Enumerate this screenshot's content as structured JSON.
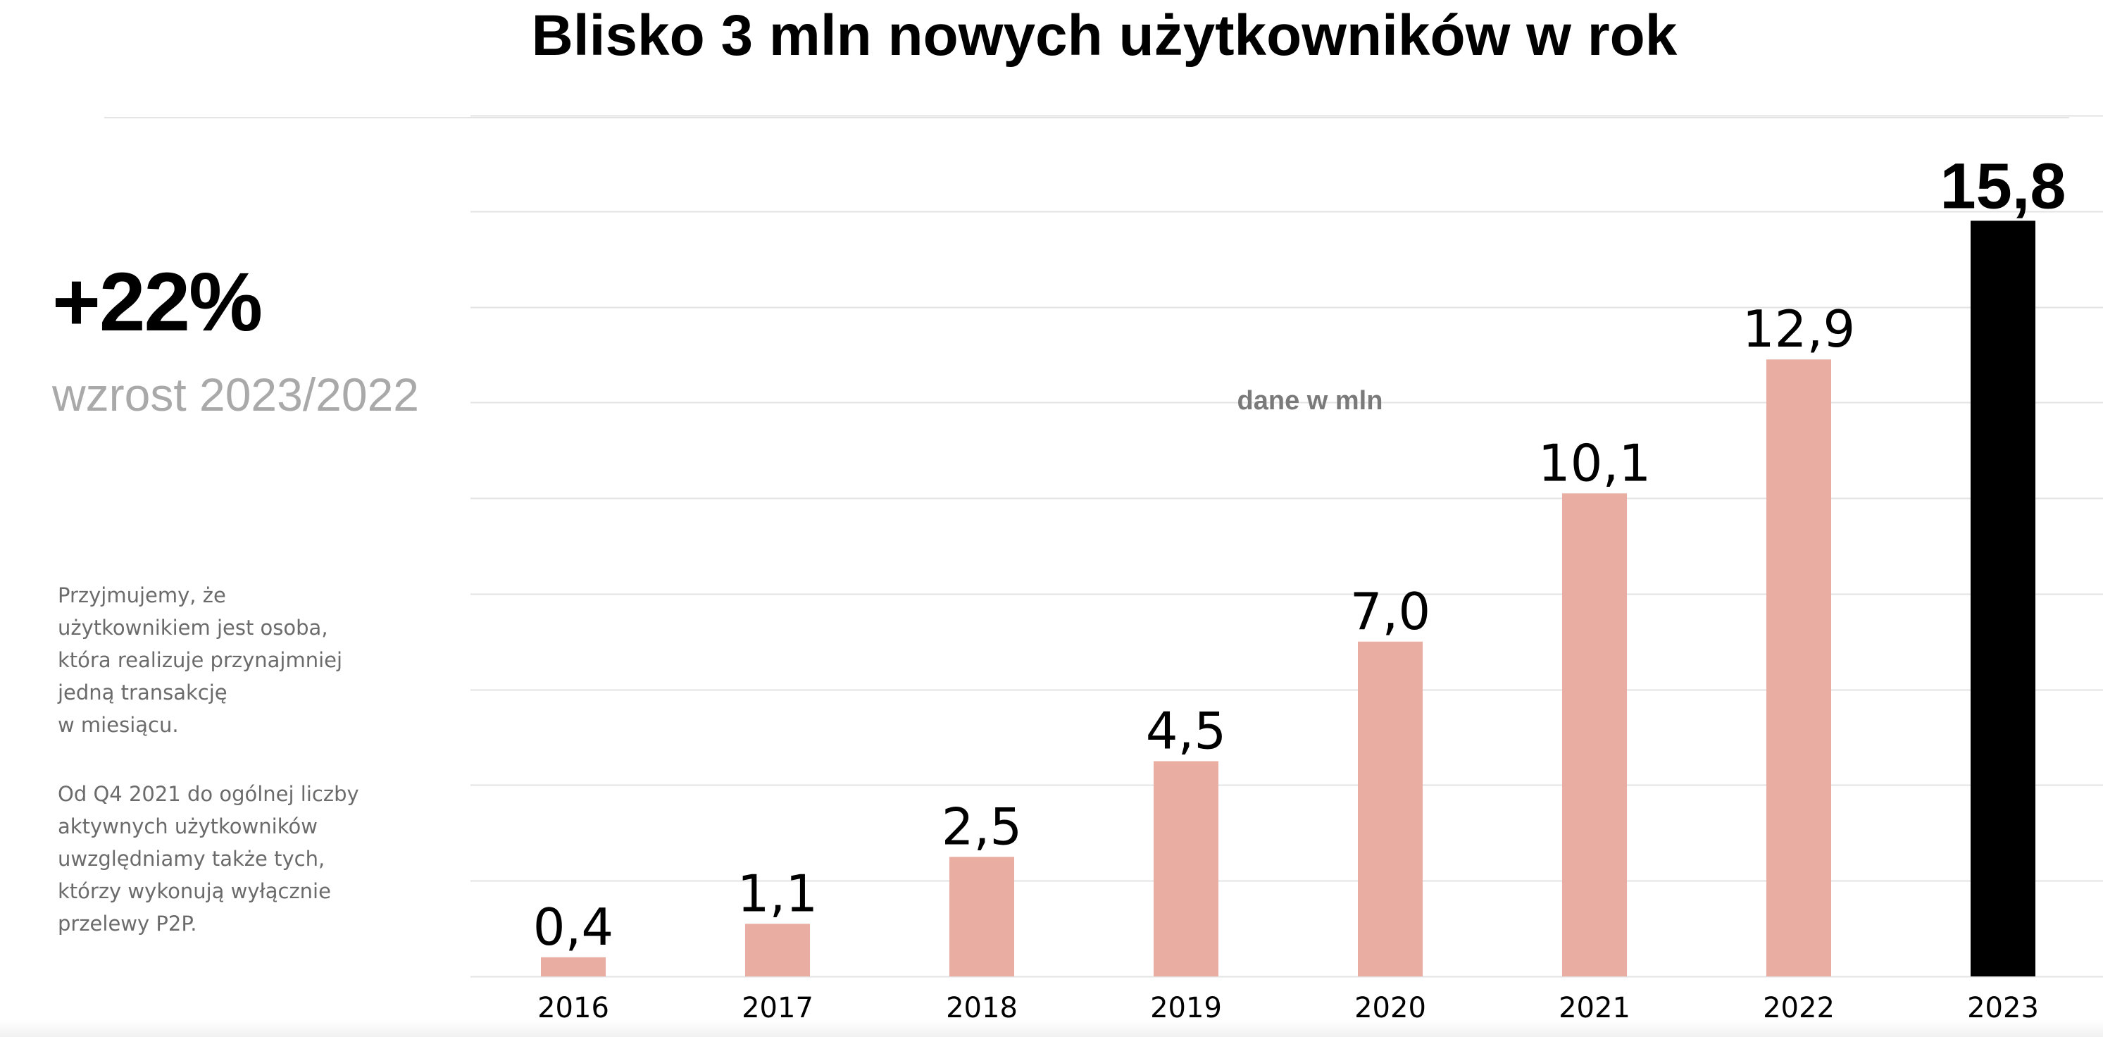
{
  "headline": {
    "title": "Blisko 3 mln nowych użytkowników w rok"
  },
  "stat": {
    "value": "+22%",
    "label": "wzrost\n2023/2022"
  },
  "notes": {
    "definition": "Przyjmujemy, że\nużytkownikiem jest osoba,\nktóra realizuje przynajmniej\njedną transakcję\nw miesiącu.",
    "p2p": "Od Q4 2021 do ogólnej liczby\naktywnych użytkowników\nuwzględniamy także tych,\nktórzy wykonują wyłącznie\nprzelewy P2P."
  },
  "chart_data": {
    "type": "bar",
    "title": "",
    "xlabel": "",
    "ylabel": "",
    "unit_label": "dane w mln",
    "categories": [
      "2016",
      "2017",
      "2018",
      "2019",
      "2020",
      "2021",
      "2022",
      "2023"
    ],
    "values": [
      0.4,
      1.1,
      2.5,
      4.5,
      7.0,
      10.1,
      12.9,
      15.8
    ],
    "value_labels": [
      "0,4",
      "1,1",
      "2,5",
      "4,5",
      "7,0",
      "10,1",
      "12,9",
      "15,8"
    ],
    "ylim": [
      0,
      18
    ],
    "grid": true,
    "highlight_index": 7,
    "colors": {
      "bar": "#EAADA2",
      "highlight": "#000000",
      "grid": "#E3E3E3",
      "text": "#000000"
    }
  }
}
